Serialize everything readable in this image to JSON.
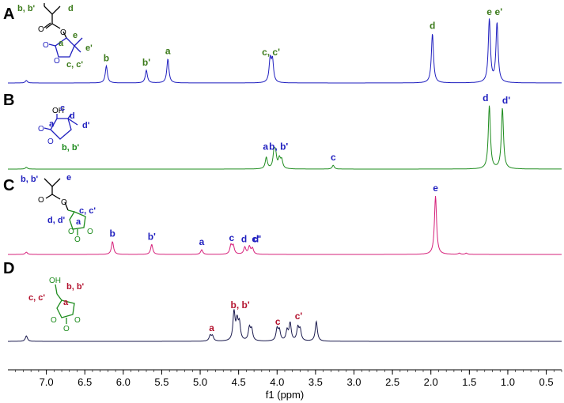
{
  "colors": {
    "A": "#1f1fbf",
    "B": "#1e8c1e",
    "C": "#d6207a",
    "D": "#1a1a4e",
    "green_label": "#3b7a1a",
    "blue_label": "#1f1fbf",
    "red_label": "#b3122e",
    "struct_black": "#000000"
  },
  "chart_data": {
    "type": "line",
    "xlabel": "f1 (ppm)",
    "xlim": [
      7.5,
      0.3
    ],
    "x_ticks": [
      7.0,
      6.5,
      6.0,
      5.5,
      5.0,
      4.5,
      4.0,
      3.5,
      3.0,
      2.5,
      2.0,
      1.5,
      1.0,
      0.5
    ],
    "x_tick_labels": [
      "7.0",
      "6.5",
      "6.0",
      "5.5",
      "5.0",
      "4.5",
      "4.0",
      "3.5",
      "3.0",
      "2.5",
      "2.0",
      "1.5",
      "1.0",
      "0.5"
    ],
    "series": [
      {
        "name": "A",
        "peaks": [
          {
            "ppm": 7.26,
            "h": 0.04
          },
          {
            "ppm": 6.22,
            "h": 0.27
          },
          {
            "ppm": 5.7,
            "h": 0.2
          },
          {
            "ppm": 5.42,
            "h": 0.38
          },
          {
            "ppm": 4.09,
            "h": 0.36
          },
          {
            "ppm": 4.06,
            "h": 0.34
          },
          {
            "ppm": 1.98,
            "h": 0.78
          },
          {
            "ppm": 1.24,
            "h": 1.0
          },
          {
            "ppm": 1.14,
            "h": 0.94
          }
        ],
        "labels": [
          {
            "text": "b",
            "ppm": 6.22
          },
          {
            "text": "b'",
            "ppm": 5.7
          },
          {
            "text": "a",
            "ppm": 5.42
          },
          {
            "text": "c, c'",
            "ppm": 4.08
          },
          {
            "text": "d",
            "ppm": 1.98
          },
          {
            "text": "e",
            "ppm": 1.24
          },
          {
            "text": "e'",
            "ppm": 1.12
          }
        ]
      },
      {
        "name": "B",
        "peaks": [
          {
            "ppm": 7.26,
            "h": 0.03
          },
          {
            "ppm": 4.14,
            "h": 0.18
          },
          {
            "ppm": 4.04,
            "h": 0.23
          },
          {
            "ppm": 4.02,
            "h": 0.21
          },
          {
            "ppm": 3.97,
            "h": 0.15
          },
          {
            "ppm": 3.94,
            "h": 0.13
          },
          {
            "ppm": 3.27,
            "h": 0.06
          },
          {
            "ppm": 1.24,
            "h": 1.0
          },
          {
            "ppm": 1.07,
            "h": 0.96
          }
        ],
        "labels": [
          {
            "text": "a",
            "ppm": 4.15
          },
          {
            "text": "b, b'",
            "ppm": 3.98
          },
          {
            "text": "c",
            "ppm": 3.27
          },
          {
            "text": "d",
            "ppm": 1.29
          },
          {
            "text": "d'",
            "ppm": 1.02
          }
        ]
      },
      {
        "name": "C",
        "peaks": [
          {
            "ppm": 7.26,
            "h": 0.04
          },
          {
            "ppm": 6.14,
            "h": 0.22
          },
          {
            "ppm": 5.63,
            "h": 0.17
          },
          {
            "ppm": 4.98,
            "h": 0.08
          },
          {
            "ppm": 4.6,
            "h": 0.15
          },
          {
            "ppm": 4.57,
            "h": 0.14
          },
          {
            "ppm": 4.42,
            "h": 0.12
          },
          {
            "ppm": 4.36,
            "h": 0.13
          },
          {
            "ppm": 4.32,
            "h": 0.1
          },
          {
            "ppm": 1.94,
            "h": 1.0
          },
          {
            "ppm": 1.63,
            "h": 0.02
          },
          {
            "ppm": 1.54,
            "h": 0.02
          }
        ],
        "labels": [
          {
            "text": "b",
            "ppm": 6.14
          },
          {
            "text": "b'",
            "ppm": 5.63
          },
          {
            "text": "a",
            "ppm": 4.98
          },
          {
            "text": "c",
            "ppm": 4.59
          },
          {
            "text": "d",
            "ppm": 4.43
          },
          {
            "text": "c'",
            "ppm": 4.28
          },
          {
            "text": "d'",
            "ppm": 4.26
          },
          {
            "text": "e",
            "ppm": 1.94
          }
        ]
      },
      {
        "name": "D",
        "peaks": [
          {
            "ppm": 7.26,
            "h": 0.12
          },
          {
            "ppm": 4.87,
            "h": 0.12
          },
          {
            "ppm": 4.84,
            "h": 0.11
          },
          {
            "ppm": 4.56,
            "h": 0.62
          },
          {
            "ppm": 4.52,
            "h": 0.4
          },
          {
            "ppm": 4.49,
            "h": 0.36
          },
          {
            "ppm": 4.36,
            "h": 0.28
          },
          {
            "ppm": 4.33,
            "h": 0.24
          },
          {
            "ppm": 4.0,
            "h": 0.26
          },
          {
            "ppm": 3.97,
            "h": 0.22
          },
          {
            "ppm": 3.87,
            "h": 0.22
          },
          {
            "ppm": 3.83,
            "h": 0.38
          },
          {
            "ppm": 3.73,
            "h": 0.28
          },
          {
            "ppm": 3.7,
            "h": 0.24
          },
          {
            "ppm": 3.49,
            "h": 0.43
          }
        ],
        "labels": [
          {
            "text": "a",
            "ppm": 4.85
          },
          {
            "text": "b, b'",
            "ppm": 4.48
          },
          {
            "text": "c",
            "ppm": 3.99
          },
          {
            "text": "c'",
            "ppm": 3.72
          }
        ]
      }
    ]
  },
  "panels": {
    "A": {
      "letter": "A",
      "structure": {
        "tl": "b, b'",
        "tr": "d",
        "ester_o": "O",
        "carbonyl_o": "O",
        "ring_o": "O",
        "ring_carbonyl_o": "O",
        "a": "a",
        "e": "e",
        "e2": "e'",
        "c": "c, c'"
      }
    },
    "B": {
      "letter": "B",
      "structure": {
        "oh": "OH",
        "c": "c",
        "d": "d",
        "a": "a",
        "d2": "d'",
        "carbonyl_o": "O",
        "ring_o": "O",
        "b": "b, b'"
      }
    },
    "C": {
      "letter": "C",
      "structure": {
        "tl": "b, b'",
        "e": "e",
        "ester_o": "O",
        "carbonyl_o": "O",
        "d": "d, d'",
        "c": "c, c'",
        "a": "a",
        "ring_o1": "O",
        "ring_o2": "O",
        "ring_carbonyl_o": "O"
      }
    },
    "D": {
      "letter": "D",
      "structure": {
        "oh": "OH",
        "b": "b, b'",
        "c": "c, c'",
        "a": "a",
        "ring_o1": "O",
        "ring_o2": "O",
        "ring_carbonyl_o": "O"
      }
    }
  }
}
